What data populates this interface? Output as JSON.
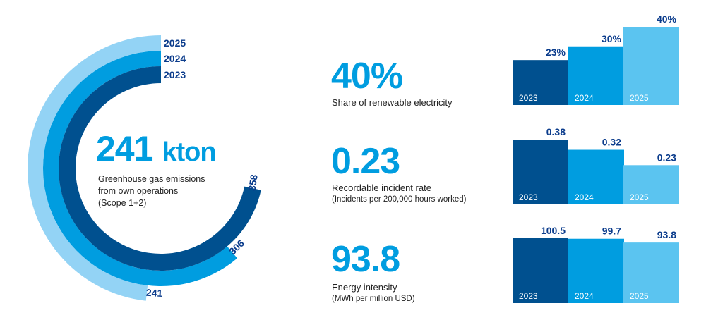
{
  "colors": {
    "y2023": "#00508f",
    "y2024": "#009de0",
    "y2025_ring": "#93d3f5",
    "y2025_bar": "#5bc4f0",
    "label": "#0b3c8c",
    "accent": "#009de0"
  },
  "summary": {
    "value": "241",
    "unit": "kton",
    "desc_lines": [
      "Greenhouse gas emissions",
      "from own operations",
      "(Scope 1+2)"
    ]
  },
  "kpis": [
    {
      "value": "40%",
      "label": "Share of renewable electricity",
      "sublabel": ""
    },
    {
      "value": "0.23",
      "label": "Recordable incident rate",
      "sublabel": "(Incidents per 200,000 hours worked)"
    },
    {
      "value": "93.8",
      "label": "Energy intensity",
      "sublabel": "(MWh per million USD)"
    }
  ],
  "chart_data": [
    {
      "type": "radial-bar",
      "title": "Greenhouse gas emissions from own operations (Scope 1+2)",
      "unit": "kton",
      "categories": [
        "2023",
        "2024",
        "2025"
      ],
      "values": [
        358,
        306,
        241
      ],
      "value_labels": [
        "358",
        "306",
        "241"
      ],
      "full_circle_value": 500
    },
    {
      "type": "bar",
      "title": "Share of renewable electricity",
      "categories": [
        "2023",
        "2024",
        "2025"
      ],
      "values": [
        23,
        30,
        40
      ],
      "value_labels": [
        "23%",
        "30%",
        "40%"
      ],
      "ylim": [
        0,
        40
      ]
    },
    {
      "type": "bar",
      "title": "Recordable incident rate",
      "categories": [
        "2023",
        "2024",
        "2025"
      ],
      "values": [
        0.38,
        0.32,
        0.23
      ],
      "value_labels": [
        "0.38",
        "0.32",
        "0.23"
      ],
      "ylim": [
        0,
        0.38
      ]
    },
    {
      "type": "bar",
      "title": "Energy intensity",
      "categories": [
        "2023",
        "2024",
        "2025"
      ],
      "values": [
        100.5,
        99.7,
        93.8
      ],
      "value_labels": [
        "100.5",
        "99.7",
        "93.8"
      ],
      "ylim": [
        0,
        100.5
      ]
    }
  ]
}
